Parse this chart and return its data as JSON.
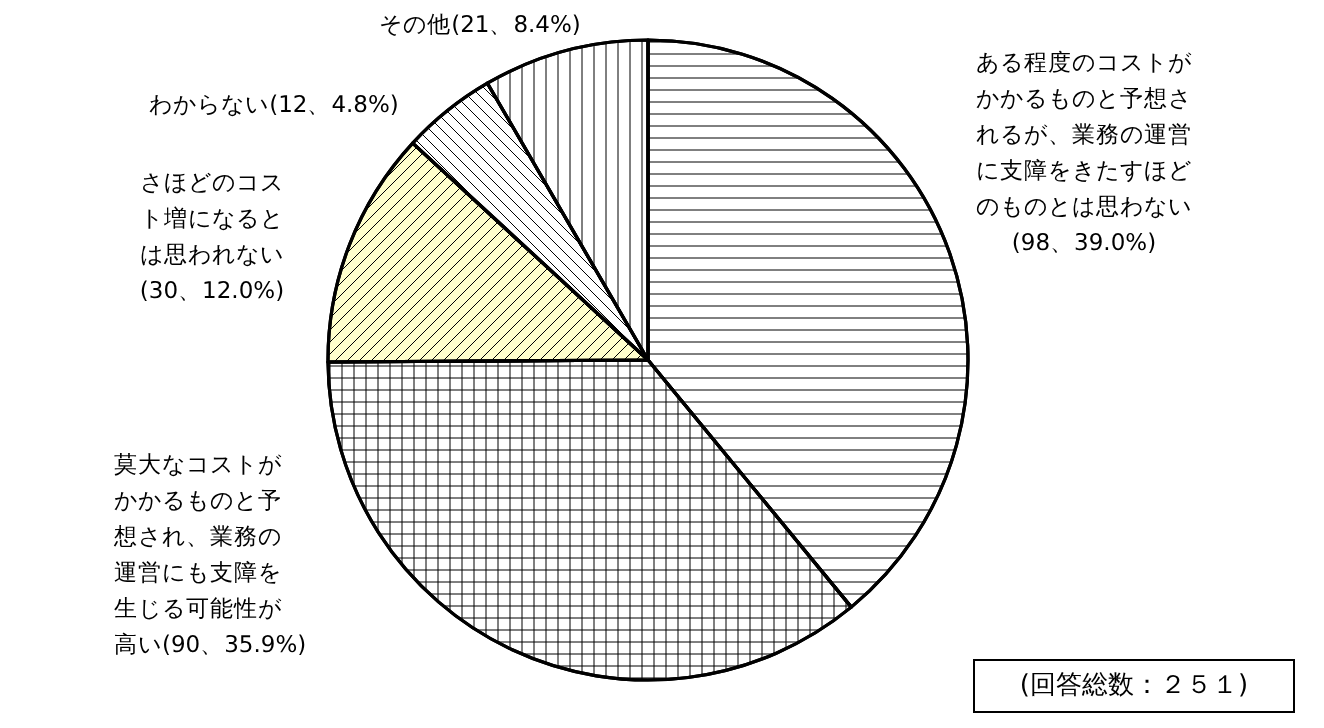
{
  "chart_data": {
    "type": "pie",
    "categories": [
      "ある程度のコストがかかるものと予想されるが、業務の運営に支障をきたすほどのものとは思わない",
      "莫大なコストがかかるものと予想され、業務の運営にも支障を生じる可能性が高い",
      "さほどのコスト増になるとは思われない",
      "わからない",
      "その他"
    ],
    "values": [
      98,
      90,
      30,
      12,
      21
    ],
    "value_labels": [
      "(98、39.0%)",
      "(90、35.9%)",
      "(30、12.0%)",
      "(12、4.8%)",
      "(21、8.4%)"
    ],
    "colors": [
      "#ffffff",
      "#ffffff",
      "#ffffcc",
      "#ffffff",
      "#ffffff"
    ],
    "annotations": [
      "(回答総数：２５１)"
    ]
  }
}
